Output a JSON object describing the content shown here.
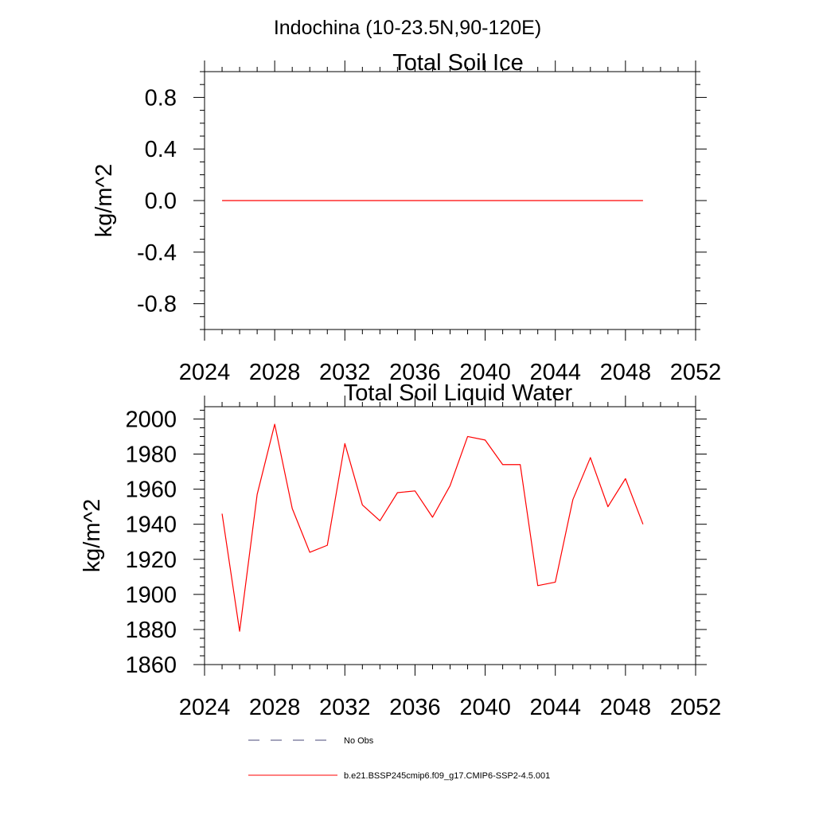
{
  "figure_title": "Indochina (10-23.5N,90-120E)",
  "legend": {
    "items": [
      {
        "label": "No Obs",
        "style": "dashed",
        "color": "#000000"
      },
      {
        "label": "b.e21.BSSP245cmip6.f09_g17.CMIP6-SSP2-4.5.001",
        "style": "solid",
        "color": "#ff0000"
      }
    ]
  },
  "chart_data": [
    {
      "type": "line",
      "title": "Total Soil Ice",
      "ylabel": "kg/m^2",
      "xlim": [
        2024,
        2052
      ],
      "ylim": [
        -1.0,
        1.0
      ],
      "xticks": [
        2024,
        2028,
        2032,
        2036,
        2040,
        2044,
        2048,
        2052
      ],
      "xtick_labels": [
        "2024",
        "2028",
        "2032",
        "2036",
        "2040",
        "2044",
        "2048",
        "2052"
      ],
      "yticks": [
        -0.8,
        -0.4,
        0.0,
        0.4,
        0.8
      ],
      "ytick_labels": [
        "-0.8",
        "-0.4",
        "0.0",
        "0.4",
        "0.8"
      ],
      "series": [
        {
          "color": "#ff0000",
          "x": [
            2025,
            2026,
            2027,
            2028,
            2029,
            2030,
            2031,
            2032,
            2033,
            2034,
            2035,
            2036,
            2037,
            2038,
            2039,
            2040,
            2041,
            2042,
            2043,
            2044,
            2045,
            2046,
            2047,
            2048,
            2049
          ],
          "y": [
            0,
            0,
            0,
            0,
            0,
            0,
            0,
            0,
            0,
            0,
            0,
            0,
            0,
            0,
            0,
            0,
            0,
            0,
            0,
            0,
            0,
            0,
            0,
            0,
            0
          ]
        }
      ]
    },
    {
      "type": "line",
      "title": "Total Soil Liquid Water",
      "ylabel": "kg/m^2",
      "xlim": [
        2024,
        2052
      ],
      "ylim": [
        1860,
        2007
      ],
      "xticks": [
        2024,
        2028,
        2032,
        2036,
        2040,
        2044,
        2048,
        2052
      ],
      "xtick_labels": [
        "2024",
        "2028",
        "2032",
        "2036",
        "2040",
        "2044",
        "2048",
        "2052"
      ],
      "yticks": [
        1860,
        1880,
        1900,
        1920,
        1940,
        1960,
        1980,
        2000
      ],
      "ytick_labels": [
        "1860",
        "1880",
        "1900",
        "1920",
        "1940",
        "1960",
        "1980",
        "2000"
      ],
      "series": [
        {
          "color": "#ff0000",
          "x": [
            2025,
            2026,
            2027,
            2028,
            2029,
            2030,
            2031,
            2032,
            2033,
            2034,
            2035,
            2036,
            2037,
            2038,
            2039,
            2040,
            2041,
            2042,
            2043,
            2044,
            2045,
            2046,
            2047,
            2048,
            2049
          ],
          "y": [
            1946,
            1879,
            1957,
            1997,
            1949,
            1924,
            1928,
            1986,
            1951,
            1942,
            1958,
            1959,
            1944,
            1962,
            1990,
            1988,
            1974,
            1974,
            1905,
            1907,
            1954,
            1978,
            1950,
            1966,
            1940
          ]
        }
      ]
    }
  ]
}
